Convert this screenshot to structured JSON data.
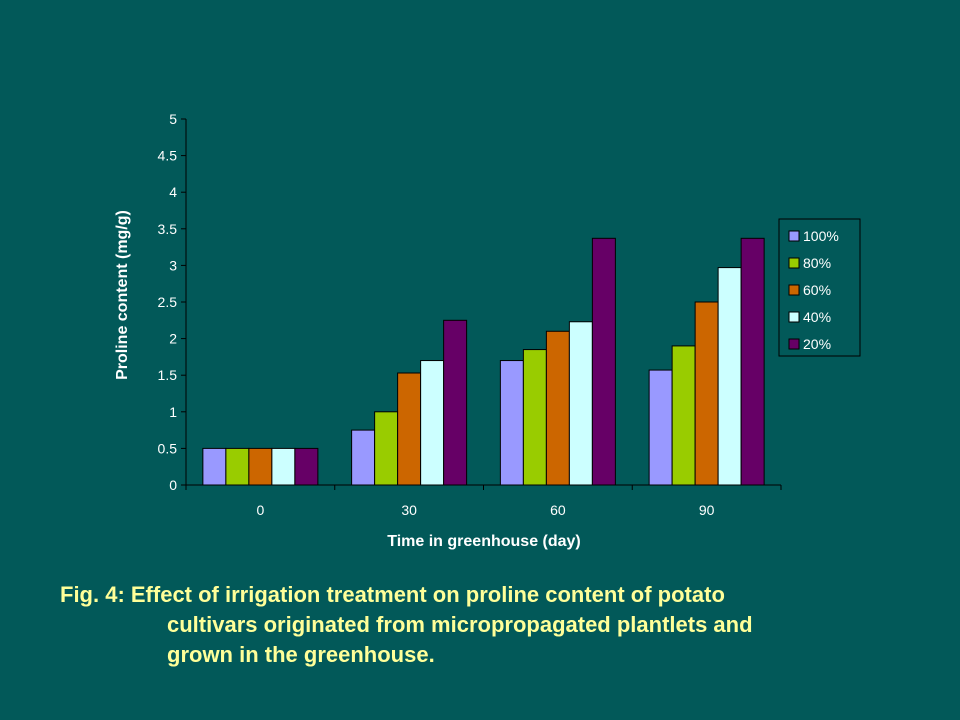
{
  "chart_data": {
    "type": "bar",
    "categories": [
      "0",
      "30",
      "60",
      "90"
    ],
    "series": [
      {
        "name": "100%",
        "color": "#9999ff",
        "values": [
          0.5,
          0.75,
          1.7,
          1.57
        ]
      },
      {
        "name": "80%",
        "color": "#99cc00",
        "values": [
          0.5,
          1.0,
          1.85,
          1.9
        ]
      },
      {
        "name": "60%",
        "color": "#cc6600",
        "values": [
          0.5,
          1.53,
          2.1,
          2.5
        ]
      },
      {
        "name": "40%",
        "color": "#ccffff",
        "values": [
          0.5,
          1.7,
          2.23,
          2.97
        ]
      },
      {
        "name": "20%",
        "color": "#660066",
        "values": [
          0.5,
          2.25,
          3.37,
          3.37
        ]
      }
    ],
    "xlabel": "Time in greenhouse (day)",
    "ylabel": "Proline content (mg/g)",
    "ylim": [
      0,
      5
    ],
    "yticks": [
      "0",
      "0.5",
      "1",
      "1.5",
      "2",
      "2.5",
      "3",
      "3.5",
      "4",
      "4.5",
      "5"
    ],
    "grid": false,
    "legend_position": "right"
  },
  "caption": {
    "line1": "Fig. 4: Effect of irrigation treatment on proline content of potato",
    "line2": "cultivars originated from micropropagated plantlets and",
    "line3": "grown in the greenhouse."
  },
  "colors": {
    "background": "#025959",
    "caption_text": "#ffff99",
    "axis_text": "#ffffff"
  }
}
